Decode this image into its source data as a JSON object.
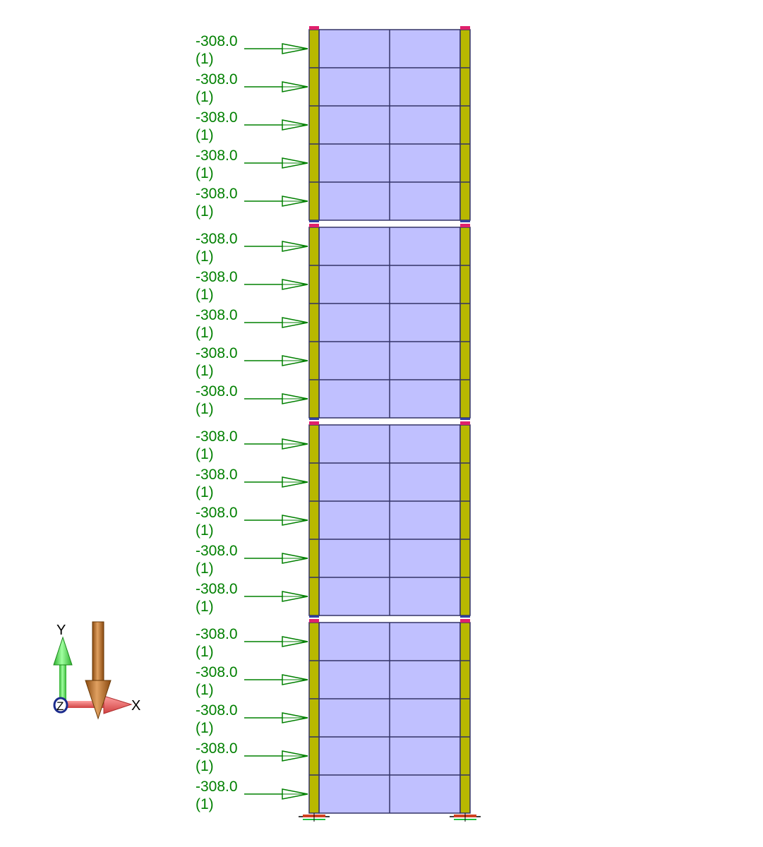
{
  "load_labels": [
    {
      "value": "-308.0",
      "case": "(1)"
    },
    {
      "value": "-308.0",
      "case": "(1)"
    },
    {
      "value": "-308.0",
      "case": "(1)"
    },
    {
      "value": "-308.0",
      "case": "(1)"
    },
    {
      "value": "-308.0",
      "case": "(1)"
    },
    {
      "value": "-308.0",
      "case": "(1)"
    },
    {
      "value": "-308.0",
      "case": "(1)"
    },
    {
      "value": "-308.0",
      "case": "(1)"
    },
    {
      "value": "-308.0",
      "case": "(1)"
    },
    {
      "value": "-308.0",
      "case": "(1)"
    },
    {
      "value": "-308.0",
      "case": "(1)"
    },
    {
      "value": "-308.0",
      "case": "(1)"
    },
    {
      "value": "-308.0",
      "case": "(1)"
    },
    {
      "value": "-308.0",
      "case": "(1)"
    },
    {
      "value": "-308.0",
      "case": "(1)"
    },
    {
      "value": "-308.0",
      "case": "(1)"
    },
    {
      "value": "-308.0",
      "case": "(1)"
    },
    {
      "value": "-308.0",
      "case": "(1)"
    },
    {
      "value": "-308.0",
      "case": "(1)"
    },
    {
      "value": "-308.0",
      "case": "(1)"
    }
  ],
  "structure": {
    "storeys": 4,
    "rows_per_storey": 5,
    "columns_per_row": 2
  },
  "axes": {
    "x_label": "X",
    "y_label": "Y",
    "z_label": "Z"
  },
  "colors": {
    "load": "#008000",
    "panel_fill": "#c0c0ff",
    "panel_line": "#333366",
    "column_fill": "#b8b800",
    "node": "#e0206c",
    "x_arrow": "#f06060",
    "y_arrow": "#40d040",
    "gravity_arrow": "#b86e28"
  }
}
